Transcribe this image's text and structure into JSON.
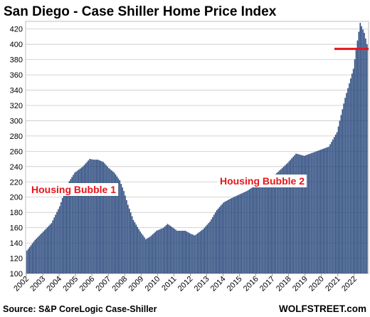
{
  "chart_data": {
    "type": "bar",
    "title": "San Diego - Case Shiller Home Price Index",
    "xlabel": "",
    "ylabel": "",
    "ylim": [
      100,
      430
    ],
    "yticks": [
      100,
      120,
      140,
      160,
      180,
      200,
      220,
      240,
      260,
      280,
      300,
      320,
      340,
      360,
      380,
      400,
      420
    ],
    "xticks": [
      "2002",
      "2003",
      "2004",
      "2005",
      "2006",
      "2007",
      "2008",
      "2009",
      "2010",
      "2011",
      "2012",
      "2013",
      "2014",
      "2015",
      "2016",
      "2017",
      "2018",
      "2019",
      "2020",
      "2021",
      "2022"
    ],
    "x_start": "2002-01",
    "frequency": "monthly",
    "grid": true,
    "bar_color": "#2b4a7e",
    "annotations": [
      {
        "text": "Housing Bubble 1",
        "color": "#e8141a"
      },
      {
        "text": "Housing Bubble 2",
        "color": "#e8141a"
      }
    ],
    "reference_line": {
      "value": 394,
      "color": "#e8141a"
    },
    "source": "Source: S&P CoreLogic Case-Shiller",
    "brand": "WOLFSTREET.com",
    "keyframes": [
      [
        "2002-01",
        130
      ],
      [
        "2002-07",
        144
      ],
      [
        "2003-01",
        155
      ],
      [
        "2003-07",
        166
      ],
      [
        "2004-01",
        188
      ],
      [
        "2004-06",
        215
      ],
      [
        "2004-12",
        232
      ],
      [
        "2005-06",
        240
      ],
      [
        "2005-11",
        250
      ],
      [
        "2006-02",
        249
      ],
      [
        "2006-05",
        249
      ],
      [
        "2006-09",
        246
      ],
      [
        "2007-01",
        238
      ],
      [
        "2007-05",
        232
      ],
      [
        "2007-09",
        222
      ],
      [
        "2007-12",
        208
      ],
      [
        "2008-03",
        190
      ],
      [
        "2008-07",
        170
      ],
      [
        "2008-12",
        155
      ],
      [
        "2009-04",
        145
      ],
      [
        "2009-07",
        148
      ],
      [
        "2009-12",
        156
      ],
      [
        "2010-05",
        160
      ],
      [
        "2010-08",
        165
      ],
      [
        "2010-12",
        160
      ],
      [
        "2011-03",
        156
      ],
      [
        "2011-09",
        156
      ],
      [
        "2012-01",
        152
      ],
      [
        "2012-04",
        150
      ],
      [
        "2012-10",
        158
      ],
      [
        "2013-03",
        168
      ],
      [
        "2013-08",
        183
      ],
      [
        "2014-01",
        193
      ],
      [
        "2014-06",
        198
      ],
      [
        "2014-12",
        203
      ],
      [
        "2015-06",
        208
      ],
      [
        "2015-12",
        215
      ],
      [
        "2016-06",
        220
      ],
      [
        "2016-12",
        225
      ],
      [
        "2017-06",
        235
      ],
      [
        "2017-12",
        245
      ],
      [
        "2018-06",
        257
      ],
      [
        "2018-12",
        254
      ],
      [
        "2019-06",
        258
      ],
      [
        "2019-12",
        262
      ],
      [
        "2020-06",
        266
      ],
      [
        "2020-12",
        285
      ],
      [
        "2021-06",
        330
      ],
      [
        "2021-12",
        368
      ],
      [
        "2022-03",
        405
      ],
      [
        "2022-05",
        428
      ],
      [
        "2022-08",
        415
      ],
      [
        "2022-10",
        400
      ]
    ]
  }
}
